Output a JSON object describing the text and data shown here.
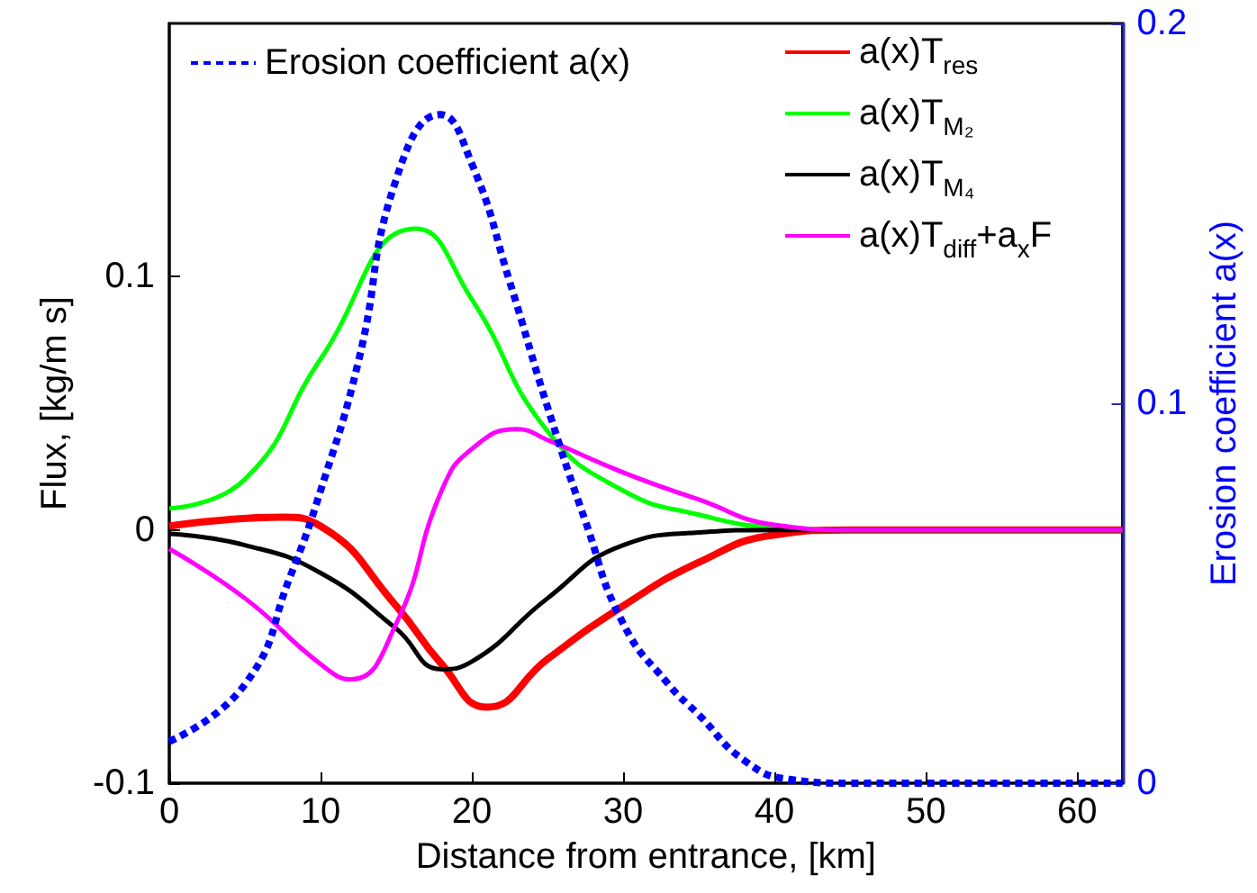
{
  "chart_data": {
    "type": "line",
    "xlabel": "Distance from entrance, [km]",
    "ylabel": "Flux, [kg/m s]",
    "y2label": "Erosion coefficient a(x)",
    "xlim": [
      0,
      63
    ],
    "xticks": [
      0,
      10,
      20,
      30,
      40,
      50,
      60
    ],
    "ylim": [
      -0.1,
      0.2
    ],
    "yticks": [
      -0.1,
      0,
      0.1
    ],
    "y2lim": [
      0,
      0.2
    ],
    "y2ticks": [
      0,
      0.1,
      0.2
    ],
    "grid": false,
    "legend": "top",
    "marker": "none",
    "series": [
      {
        "name": "Erosion coefficient a(x)",
        "color": "#0000ff",
        "axis": "y2",
        "line_style": "dashed",
        "x": [
          0,
          5,
          8,
          10,
          12.5,
          15,
          17.9,
          20,
          22.5,
          25,
          27.5,
          30,
          33,
          35,
          38,
          41,
          45,
          63
        ],
        "values": [
          0.011,
          0.026,
          0.0545,
          0.077,
          0.111,
          0.159,
          0.176,
          0.163,
          0.132,
          0.099,
          0.069,
          0.042,
          0.026,
          0.018,
          0.006,
          0.001,
          0,
          0
        ]
      },
      {
        "name": "a(x)T$_{res}$",
        "color": "#ff0000",
        "line_style": "solid",
        "x": [
          0,
          7.5,
          10,
          15,
          18,
          21,
          25,
          30,
          35,
          40,
          45,
          63
        ],
        "values": [
          0.0015,
          0.005,
          0.0015,
          -0.03,
          -0.053,
          -0.07,
          -0.051,
          -0.03,
          -0.0128,
          -0.002,
          0,
          0
        ]
      },
      {
        "name": "a(x)T$_{M₂}$",
        "color": "#00ff00",
        "line_style": "solid",
        "x": [
          0,
          5,
          10,
          16.3,
          20,
          25,
          30,
          35,
          40,
          45,
          63
        ],
        "values": [
          0.0085,
          0.02,
          0.0675,
          0.119,
          0.091,
          0.039,
          0.0155,
          0.006,
          0.001,
          0,
          0
        ]
      },
      {
        "name": "a(x)T$_{M₄}$",
        "color": "#000000",
        "line_style": "solid",
        "x": [
          0,
          5,
          10,
          15,
          18,
          20,
          25,
          30,
          35,
          40,
          63
        ],
        "values": [
          -0.0015,
          -0.006,
          -0.017,
          -0.039,
          -0.055,
          -0.052,
          -0.027,
          -0.006,
          -0.001,
          0,
          0
        ]
      },
      {
        "name": "a(x)T$_{diff}$+a$_{x}$F",
        "color": "#ff00ff",
        "line_style": "solid",
        "x": [
          0,
          5,
          10,
          12,
          15,
          18,
          20,
          23,
          25,
          30,
          35,
          40,
          45,
          63
        ],
        "values": [
          -0.0075,
          -0.027,
          -0.053,
          -0.059,
          -0.037,
          0.0155,
          0.032,
          0.0398,
          0.0355,
          0.0227,
          0.012,
          0.002,
          0,
          0
        ]
      }
    ]
  }
}
